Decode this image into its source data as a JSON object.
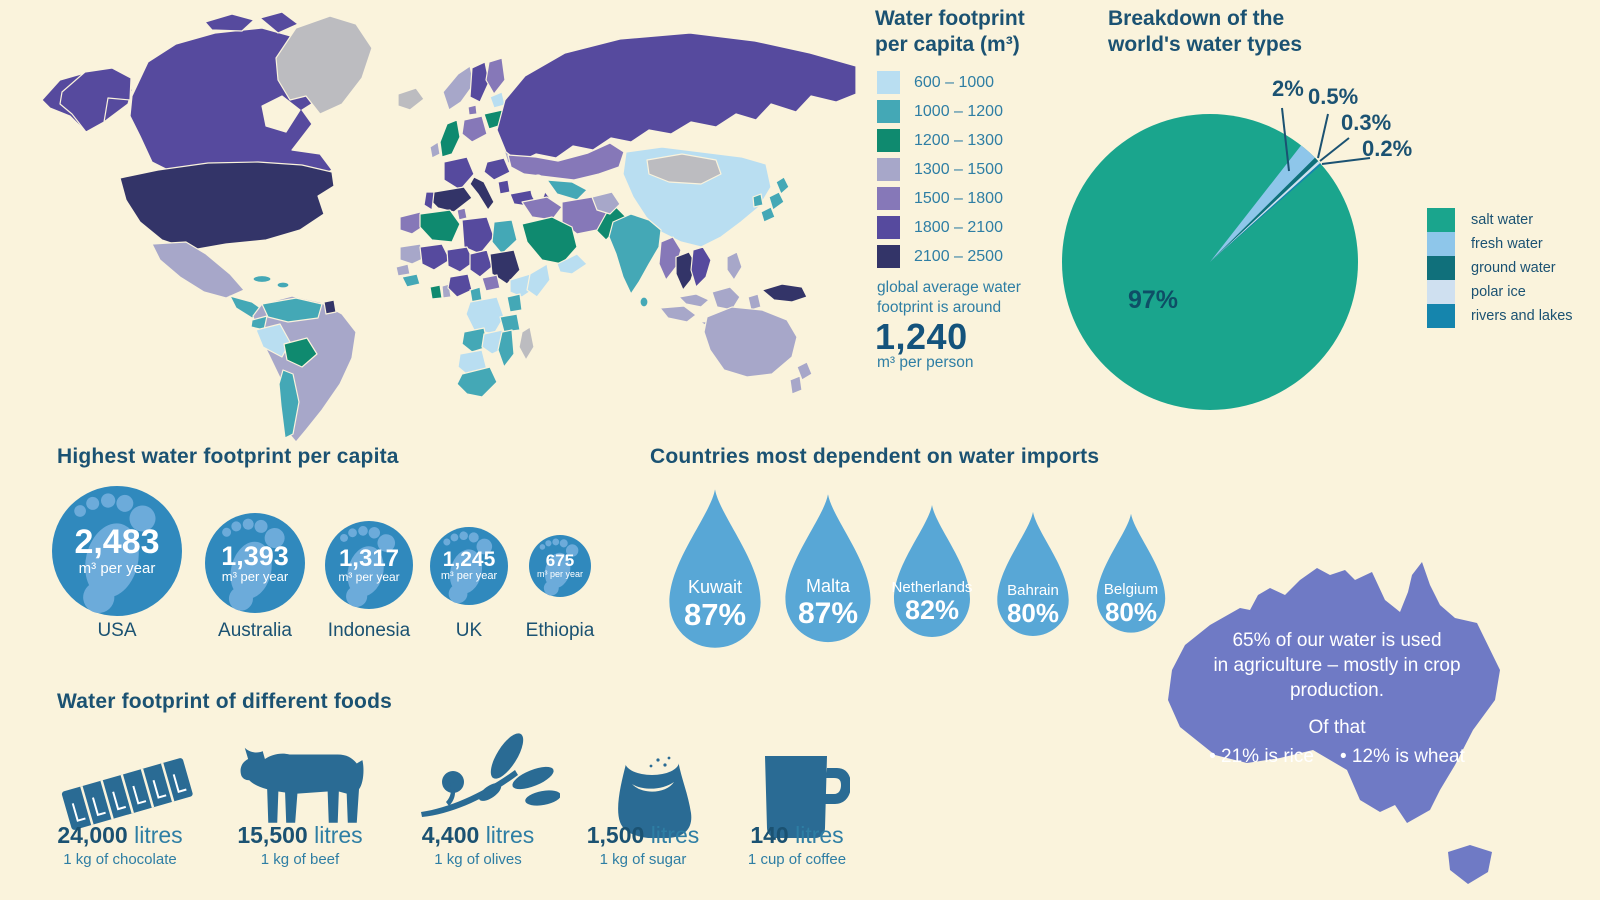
{
  "map": {
    "palette": {
      "c1": "#b9def1",
      "c2": "#44a8b6",
      "c3": "#0f8a6f",
      "c4": "#a7a7c9",
      "c5": "#8678b8",
      "c6": "#564a9e",
      "c7": "#333468",
      "nodata": "#bcbcc0"
    },
    "legend": {
      "title": "Water footprint per capita (m³)",
      "classes": [
        {
          "label": "600 – 1000",
          "color": "#b9def1"
        },
        {
          "label": "1000 – 1200",
          "color": "#44a8b6"
        },
        {
          "label": "1200 – 1300",
          "color": "#0f8a6f"
        },
        {
          "label": "1300 – 1500",
          "color": "#a7a7c9"
        },
        {
          "label": "1500 – 1800",
          "color": "#8678b8"
        },
        {
          "label": "1800 – 2100",
          "color": "#564a9e"
        },
        {
          "label": "2100 – 2500",
          "color": "#333468"
        }
      ],
      "note": "global average water footprint is around",
      "average_value": "1,240",
      "average_unit": "m³ per person"
    },
    "regions": {
      "chukotka": "c6",
      "alaska": "c6",
      "canada": "c6",
      "canada-islands-a": "c6",
      "canada-islands-b": "c6",
      "greenland": "nodata",
      "iceland": "nodata",
      "usa": "c7",
      "mexico": "c4",
      "central-america": "c2",
      "cuba": "c2",
      "hispaniola": "c2",
      "south-america": "c4",
      "colombia-venezuela": "c2",
      "guyana": "c7",
      "ecuador": "c2",
      "peru": "c1",
      "bolivia": "c3",
      "chile": "c2",
      "norway": "c4",
      "sweden": "c6",
      "finland": "c5",
      "baltics": "c1",
      "uk": "c3",
      "ireland": "c4",
      "denmark": "c5",
      "germany": "c5",
      "poland": "c3",
      "belarus": "c2",
      "ukraine": "c4",
      "france": "c6",
      "spain": "c7",
      "portugal": "c6",
      "italy": "c7",
      "balkans": "c6",
      "romania": "c4",
      "greece": "c6",
      "turkey": "c6",
      "russia": "c6",
      "kazakhstan": "c5",
      "uzbekistan": "c2",
      "china": "c1",
      "mongolia": "nodata",
      "korea": "c2",
      "japan-n": "c2",
      "japan-m": "c2",
      "japan-s": "c2",
      "pakistan": "c3",
      "india": "c2",
      "sri-lanka": "c2",
      "myanmar": "c5",
      "thailand": "c7",
      "vietnam": "c6",
      "malaysia": "c4",
      "sumatra": "c4",
      "java": "c4",
      "borneo": "c4",
      "sulawesi": "c4",
      "philippines": "c4",
      "png": "c7",
      "australia": "c4",
      "nz-north": "c4",
      "nz-south": "c4",
      "syria-iraq": "c5",
      "iran": "c5",
      "afghanistan": "c4",
      "saudi-arabia": "c3",
      "yemen-oman": "c1",
      "morocco": "c5",
      "algeria": "c3",
      "tunisia": "c5",
      "libya": "c6",
      "egypt": "c2",
      "mauritania": "c4",
      "mali": "c6",
      "niger": "c6",
      "chad": "c6",
      "sudan": "c7",
      "ethiopia": "c1",
      "somalia": "c1",
      "senegal": "c4",
      "guinea": "c2",
      "ghana": "c3",
      "benin": "c4",
      "nigeria": "c6",
      "cameroon": "c2",
      "car": "c5",
      "drc": "c1",
      "kenya": "c2",
      "tanzania": "c2",
      "angola": "c2",
      "zambia": "c1",
      "mozambique": "c2",
      "namibia": "c1",
      "south-africa": "c2",
      "madagascar": "nodata"
    }
  },
  "pie": {
    "title": "Breakdown of the world's water types",
    "center_label": "97%",
    "slices": [
      {
        "legend_label": "salt water",
        "pct_label": "97%",
        "value": 97,
        "color": "#1aa58d"
      },
      {
        "legend_label": "fresh water",
        "pct_label": "2%",
        "value": 2,
        "color": "#8ec6ea"
      },
      {
        "legend_label": "ground water",
        "pct_label": "0.5%",
        "value": 0.5,
        "color": "#10707b"
      },
      {
        "legend_label": "polar ice",
        "pct_label": "0.3%",
        "value": 0.3,
        "color": "#cfe0f0"
      },
      {
        "legend_label": "rivers and lakes",
        "pct_label": "0.2%",
        "value": 0.2,
        "color": "#1585ad"
      }
    ]
  },
  "footprints": {
    "title": "Highest water footprint per capita",
    "circle_color": "#3089bd",
    "foot_color": "#6cabda",
    "items": [
      {
        "country": "USA",
        "value": "2,483",
        "unit": "m³ per year"
      },
      {
        "country": "Australia",
        "value": "1,393",
        "unit": "m³ per year"
      },
      {
        "country": "Indonesia",
        "value": "1,317",
        "unit": "m³ per year"
      },
      {
        "country": "UK",
        "value": "1,245",
        "unit": "m³ per year"
      },
      {
        "country": "Ethiopia",
        "value": "675",
        "unit": "m³ per year"
      }
    ]
  },
  "drops": {
    "title": "Countries most dependent on water imports",
    "drop_color": "#58a7d6",
    "items": [
      {
        "country": "Kuwait",
        "pct": "87%"
      },
      {
        "country": "Malta",
        "pct": "87%"
      },
      {
        "country": "Netherlands",
        "pct": "82%"
      },
      {
        "country": "Bahrain",
        "pct": "80%"
      },
      {
        "country": "Belgium",
        "pct": "80%"
      }
    ]
  },
  "australia_note": {
    "shape_color": "#6f7ac5",
    "line1": "65% of our water is used",
    "line2": "in agriculture – mostly in crop",
    "line3": "production.",
    "subtitle": "Of that",
    "bullets": [
      "• 21% is rice",
      "• 12% is wheat"
    ]
  },
  "foods": {
    "title": "Water footprint of different foods",
    "icon_color": "#2a6b94",
    "items": [
      {
        "icon": "chocolate-bar",
        "value": "24,000",
        "unit": "litres",
        "desc": "1 kg of chocolate"
      },
      {
        "icon": "cow",
        "value": "15,500",
        "unit": "litres",
        "desc": "1 kg of beef"
      },
      {
        "icon": "olive-branch",
        "value": "4,400",
        "unit": "litres",
        "desc": "1 kg of olives"
      },
      {
        "icon": "sugar-sack",
        "value": "1,500",
        "unit": "litres",
        "desc": "1 kg of sugar"
      },
      {
        "icon": "coffee-mug",
        "value": "140",
        "unit": "litres",
        "desc": "1 cup of coffee"
      }
    ]
  },
  "chart_data": [
    {
      "type": "pie",
      "title": "Breakdown of the world's water types",
      "labels": [
        "salt water",
        "fresh water",
        "ground water",
        "polar ice",
        "rivers and lakes"
      ],
      "values": [
        97,
        2,
        0.5,
        0.3,
        0.2
      ],
      "unit": "%",
      "legend_position": "right"
    },
    {
      "type": "bar",
      "title": "Highest water footprint per capita",
      "categories": [
        "USA",
        "Australia",
        "Indonesia",
        "UK",
        "Ethiopia"
      ],
      "values": [
        2483,
        1393,
        1317,
        1245,
        675
      ],
      "unit": "m³ per year"
    },
    {
      "type": "bar",
      "title": "Countries most dependent on water imports",
      "categories": [
        "Kuwait",
        "Malta",
        "Netherlands",
        "Bahrain",
        "Belgium"
      ],
      "values": [
        87,
        87,
        82,
        80,
        80
      ],
      "unit": "%"
    },
    {
      "type": "bar",
      "title": "Water footprint of different foods",
      "categories": [
        "1 kg of chocolate",
        "1 kg of beef",
        "1 kg of olives",
        "1 kg of sugar",
        "1 cup of coffee"
      ],
      "values": [
        24000,
        15500,
        4400,
        1500,
        140
      ],
      "unit": "litres"
    },
    {
      "type": "heatmap",
      "title": "Water footprint per capita (m³)",
      "classes": [
        "600 – 1000",
        "1000 – 1200",
        "1200 – 1300",
        "1300 – 1500",
        "1500 – 1800",
        "1800 – 2100",
        "2100 – 2500"
      ],
      "note": "global average water footprint is around 1,240 m³ per person"
    }
  ]
}
